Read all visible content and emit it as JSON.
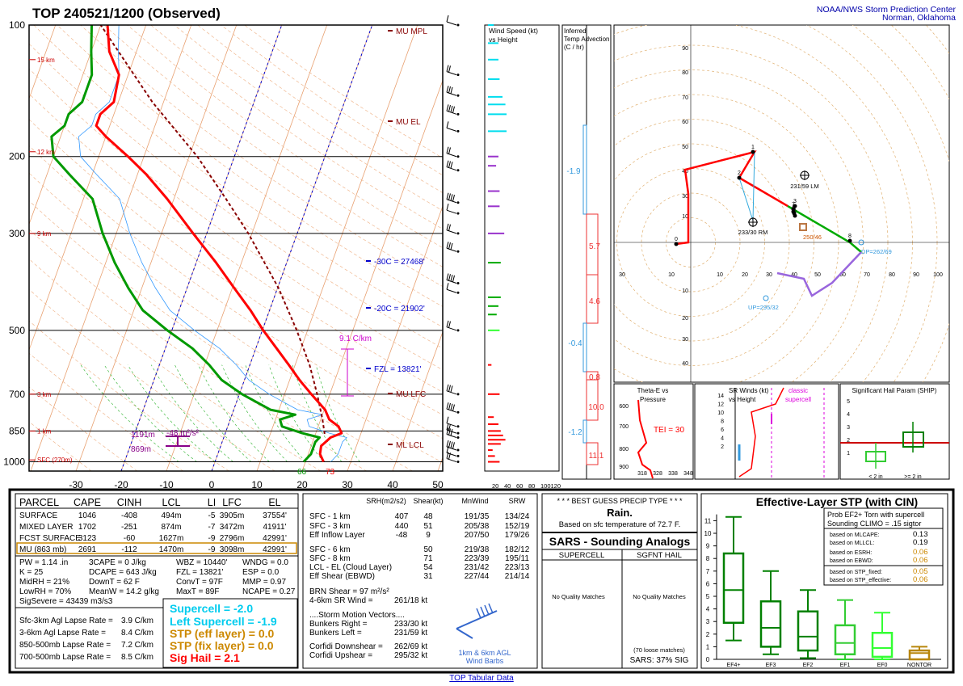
{
  "header": {
    "title": "TOP   240521/1200  (Observed)",
    "org_line1": "NOAA/NWS Storm Prediction Center",
    "org_line2": "Norman, Oklahoma"
  },
  "footer_link": "TOP Tabular Data",
  "chart_data": [
    {
      "type": "line",
      "panel": "skewt",
      "pressure_ticks": [
        "100",
        "200",
        "300",
        "500",
        "700",
        "850",
        "1000"
      ],
      "pressure_values": [
        100,
        200,
        300,
        500,
        700,
        850,
        1000
      ],
      "temp_ticks": [
        "-30",
        "-20",
        "-10",
        "0",
        "10",
        "20",
        "30",
        "40",
        "50"
      ],
      "height_labels": [
        "15 km",
        "12 km",
        "9 km",
        "3 km",
        "1 km",
        "SFC (270m)"
      ],
      "annotations": {
        "mu_mpl": "MU MPL",
        "mu_el": "MU EL",
        "mu_lfc": "MU LFC",
        "ml_lcl": "ML LCL",
        "minus30": "-30C = 27468'",
        "minus20": "-20C = 21902'",
        "fzl": "FZL = 13821'",
        "lapse": "9.1 C/km",
        "eff_top": "1191m",
        "eff_bot": "869m",
        "eff_srh": "-48 m²/s²",
        "sfc_t": "73",
        "sfc_td": "66"
      },
      "temperature": [
        [
          -1000,
          24
        ],
        [
          -960,
          22.6
        ],
        [
          -920,
          22.2
        ],
        [
          -900,
          22.9
        ],
        [
          -880,
          23.6
        ],
        [
          -860,
          25.7
        ],
        [
          -830,
          24.5
        ],
        [
          -800,
          21.9
        ],
        [
          -760,
          20.2
        ],
        [
          -700,
          15.9
        ],
        [
          -650,
          12.2
        ],
        [
          -600,
          8.6
        ],
        [
          -550,
          4.6
        ],
        [
          -500,
          0.2
        ],
        [
          -450,
          -4.2
        ],
        [
          -400,
          -9.6
        ],
        [
          -350,
          -15.6
        ],
        [
          -300,
          -23
        ],
        [
          -250,
          -31.5
        ],
        [
          -220,
          -38
        ],
        [
          -200,
          -43.5
        ],
        [
          -180,
          -50
        ],
        [
          -170,
          -53
        ],
        [
          -160,
          -53
        ],
        [
          -150,
          -51
        ],
        [
          -130,
          -52
        ],
        [
          -115,
          -56
        ],
        [
          -100,
          -58.5
        ]
      ],
      "dewpoint": [
        [
          -1000,
          19.6
        ],
        [
          -960,
          20.6
        ],
        [
          -900,
          20.6
        ],
        [
          -880,
          21.2
        ],
        [
          -860,
          17
        ],
        [
          -830,
          12
        ],
        [
          -800,
          11
        ],
        [
          -780,
          14
        ],
        [
          -760,
          8.1
        ],
        [
          -700,
          0.6
        ],
        [
          -650,
          -5
        ],
        [
          -600,
          -9
        ],
        [
          -550,
          -14
        ],
        [
          -500,
          -21
        ],
        [
          -450,
          -28
        ],
        [
          -400,
          -33
        ],
        [
          -350,
          -38
        ],
        [
          -300,
          -43
        ],
        [
          -250,
          -48
        ],
        [
          -220,
          -55
        ],
        [
          -200,
          -60
        ],
        [
          -180,
          -62
        ],
        [
          -170,
          -60
        ],
        [
          -160,
          -60
        ],
        [
          -150,
          -58
        ],
        [
          -130,
          -58
        ],
        [
          -115,
          -60
        ],
        [
          -100,
          -62
        ]
      ],
      "parcel": [
        [
          -863,
          22
        ],
        [
          -800,
          20.4
        ],
        [
          -700,
          17.2
        ],
        [
          -600,
          13.2
        ],
        [
          -500,
          7.6
        ],
        [
          -400,
          0.2
        ],
        [
          -300,
          -10.8
        ],
        [
          -250,
          -18.5
        ],
        [
          -200,
          -28.2
        ],
        [
          -150,
          -42.5
        ],
        [
          -100,
          -60
        ]
      ]
    },
    {
      "type": "bar",
      "panel": "wind_speed_vs_height",
      "title_line1": "Wind Speed (kt)",
      "title_line2": "vs Height",
      "xticks": [
        "20",
        "40",
        "60",
        "80",
        "100120"
      ],
      "bars": [
        [
          1000,
          20
        ],
        [
          970,
          12
        ],
        [
          940,
          8
        ],
        [
          910,
          22
        ],
        [
          890,
          30
        ],
        [
          870,
          26
        ],
        [
          850,
          22
        ],
        [
          820,
          18
        ],
        [
          790,
          10
        ],
        [
          700,
          20
        ],
        [
          600,
          6
        ],
        [
          500,
          20
        ],
        [
          460,
          15
        ],
        [
          440,
          18
        ],
        [
          420,
          22
        ],
        [
          350,
          22
        ],
        [
          300,
          28
        ],
        [
          260,
          20
        ],
        [
          240,
          20
        ],
        [
          210,
          14
        ],
        [
          200,
          18
        ],
        [
          175,
          32
        ],
        [
          160,
          32
        ],
        [
          152,
          30
        ],
        [
          146,
          25
        ],
        [
          133,
          20
        ],
        [
          120,
          18
        ],
        [
          110,
          18
        ],
        [
          100,
          10
        ]
      ]
    },
    {
      "type": "bar",
      "panel": "temp_advection",
      "title_line1": "Inferred",
      "title_line2": "Temp Advection",
      "title_line3": "(C / hr)",
      "labels": [
        "-1.9",
        "5.7",
        "4.6",
        "-0.4",
        "0.8",
        "10.0",
        "-1.2",
        "11.1"
      ]
    },
    {
      "type": "line",
      "panel": "hodograph",
      "range_labels_x": [
        "30",
        "10",
        "10",
        "30",
        "50",
        "70",
        "90",
        "100",
        "20",
        "40",
        "60",
        "80"
      ],
      "range_labels_y": [
        "90",
        "70",
        "50",
        "30",
        "10",
        "80",
        "60",
        "40",
        "20",
        "10",
        "30",
        "40"
      ],
      "points_labels": [
        "0",
        "1",
        "2",
        "3",
        "4",
        "5",
        "6",
        "7",
        "8"
      ],
      "markers": {
        "lm": "231/59 LM",
        "rm": "233/30 RM",
        "sfc_mean": "250/46",
        "dp": "DP=262/69",
        "up": "UP=295/32"
      }
    },
    {
      "type": "line",
      "panel": "theta_e",
      "title_line1": "Theta-E vs",
      "title_line2": "Pressure",
      "tei": "TEI = 30",
      "yticks": [
        "600",
        "700",
        "800",
        "900"
      ],
      "xticks": [
        "318",
        "328",
        "338",
        "348",
        "358"
      ]
    },
    {
      "type": "line",
      "panel": "sr_winds",
      "title_line1": "SR Winds (kt)",
      "title_line2": "vs Height",
      "note_line1": "classic",
      "note_line2": "supercell",
      "yticks": [
        "14",
        "12",
        "10",
        "8",
        "6",
        "4",
        "2"
      ]
    },
    {
      "type": "bar",
      "panel": "ship",
      "title": "Significant Hail Param (SHIP)",
      "yticks": [
        "5",
        "4",
        "3",
        "2",
        "1"
      ],
      "categories": [
        "< 2 in",
        ">= 2 in"
      ]
    },
    {
      "type": "bar",
      "panel": "effective_stp",
      "title": "Effective-Layer STP (with CIN)",
      "yticks": [
        "11",
        "10",
        "9",
        "8",
        "7",
        "6",
        "5",
        "4",
        "3",
        "2",
        "1",
        "0"
      ],
      "categories": [
        "EF4+",
        "EF3",
        "EF2",
        "EF1",
        "EF0",
        "NONTOR"
      ],
      "boxes": [
        {
          "cat": "EF4+",
          "lo": 1.5,
          "q1": 2.9,
          "med": 5.5,
          "q3": 8.4,
          "hi": 11.3,
          "color": "#008000"
        },
        {
          "cat": "EF3",
          "lo": 0.4,
          "q1": 1.0,
          "med": 2.5,
          "q3": 4.6,
          "hi": 7.0,
          "color": "#008000"
        },
        {
          "cat": "EF2",
          "lo": 0.1,
          "q1": 0.7,
          "med": 1.8,
          "q3": 3.8,
          "hi": 5.5,
          "color": "#008000"
        },
        {
          "cat": "EF1",
          "lo": 0.0,
          "q1": 0.4,
          "med": 1.3,
          "q3": 2.7,
          "hi": 4.7,
          "color": "#33cc33"
        },
        {
          "cat": "EF0",
          "lo": 0.0,
          "q1": 0.2,
          "med": 0.9,
          "q3": 2.1,
          "hi": 3.7,
          "color": "#33ff33"
        },
        {
          "cat": "NONTOR",
          "lo": 0.0,
          "q1": 0.0,
          "med": 0.5,
          "q3": 0.7,
          "hi": 1.0,
          "color": "#b8860b"
        }
      ],
      "prob_title_line1": "Prob EF2+ Torn with supercell",
      "prob_title_line2": "Sounding CLIMO = .15 sigtor",
      "prob_rows": [
        {
          "label": "based on MLCAPE:",
          "value": "0.13"
        },
        {
          "label": "based on MLLCL:",
          "value": "0.19"
        },
        {
          "label": "based on ESRH:",
          "value": "0.06"
        },
        {
          "label": "based on EBWD:",
          "value": "0.06"
        },
        {
          "label": "based on STP_fixed:",
          "value": "0.05"
        },
        {
          "label": "based on STP_effective:",
          "value": "0.06"
        }
      ]
    }
  ],
  "parcel_table": {
    "headers": [
      "PARCEL",
      "CAPE",
      "CINH",
      "LCL",
      "LI",
      "LFC",
      "EL"
    ],
    "rows": [
      [
        "SURFACE",
        "1046",
        "-408",
        "494m",
        "-5",
        "3905m",
        "37554'"
      ],
      [
        "MIXED LAYER",
        "1702",
        "-251",
        "874m",
        "-7",
        "3472m",
        "41911'"
      ],
      [
        "FCST SURFACE",
        "3123",
        "-60",
        "1627m",
        "-9",
        "2796m",
        "42991'"
      ],
      [
        "MU   (863 mb)",
        "2691",
        "-112",
        "1470m",
        "-9",
        "3098m",
        "42991'"
      ]
    ]
  },
  "thermo_params": [
    [
      "PW = 1.14 .in",
      "3CAPE = 0 J/kg",
      "WBZ = 10440'",
      "WNDG = 0.0"
    ],
    [
      "K = 25",
      "DCAPE = 643 J/kg",
      "FZL = 13821'",
      "ESP = 0.0"
    ],
    [
      "MidRH = 21%",
      "DownT = 62 F",
      "ConvT = 97F",
      "MMP = 0.97"
    ],
    [
      "LowRH = 70%",
      "MeanW = 14.2 g/kg",
      "MaxT = 89F",
      "NCAPE = 0.27"
    ]
  ],
  "sig_severe": "SigSevere = 43439 m3/s3",
  "lapse_rates": [
    [
      "Sfc-3km Agl Lapse Rate =",
      "3.9 C/km"
    ],
    [
      "3-6km Agl Lapse Rate =",
      "8.4 C/km"
    ],
    [
      "850-500mb Lapse Rate =",
      "7.2 C/km"
    ],
    [
      "700-500mb Lapse Rate =",
      "8.5 C/km"
    ]
  ],
  "composite": {
    "supercell": "Supercell = -2.0",
    "left_supercell": "Left Supercell = -1.9",
    "stp_eff": "STP (eff layer) = 0.0",
    "stp_fix": "STP (fix layer) = 0.0",
    "sig_hail": "Sig Hail = 2.1"
  },
  "kinematic": {
    "headers": [
      "SRH(m2/s2)",
      "Shear(kt)",
      "MnWind",
      "SRW"
    ],
    "rows": [
      [
        "SFC - 1 km",
        "407",
        "48",
        "191/35",
        "134/24"
      ],
      [
        "SFC - 3 km",
        "440",
        "51",
        "205/38",
        "152/19"
      ],
      [
        "Eff Inflow Layer",
        "-48",
        "9",
        "207/50",
        "179/26"
      ],
      [
        "SFC - 6 km",
        "",
        "50",
        "219/38",
        "182/12"
      ],
      [
        "SFC - 8 km",
        "",
        "71",
        "223/39",
        "195/11"
      ],
      [
        "LCL - EL (Cloud Layer)",
        "",
        "54",
        "231/42",
        "223/13"
      ],
      [
        "Eff Shear (EBWD)",
        "",
        "31",
        "227/44",
        "214/14"
      ]
    ],
    "brn": "BRN Shear =  97 m²/s²",
    "sr46": "4-6km SR Wind =",
    "sr46_val": "261/18 kt",
    "storm_motion": "....Storm Motion Vectors....",
    "bunkers_right": "Bunkers Right =",
    "bunkers_right_val": "233/30 kt",
    "bunkers_left": "Bunkers Left =",
    "bunkers_left_val": "231/59 kt",
    "corfidi_down": "Corfidi Downshear =",
    "corfidi_down_val": "262/69 kt",
    "corfidi_up": "Corfidi Upshear =",
    "corfidi_up_val": "295/32 kt",
    "barb_label1": "1km & 6km AGL",
    "barb_label2": "Wind Barbs"
  },
  "precip": {
    "title": "* * * BEST GUESS PRECIP TYPE * * *",
    "value": "Rain.",
    "note": "Based on sfc temperature of 72.7 F."
  },
  "sars": {
    "title": "SARS - Sounding Analogs",
    "col1": "SUPERCELL",
    "col2": "SGFNT HAIL",
    "nomatch1": "No Quality Matches",
    "nomatch2": "No Quality Matches",
    "loose": "(70 loose matches)",
    "sig": "SARS:  37% SIG"
  },
  "colors": {
    "temp": "#ff0000",
    "dewp": "#009900",
    "parcel": "#880000",
    "cyan": "#00ccee",
    "orange": "#cc8800",
    "purple": "#9933cc",
    "navy": "#000099"
  }
}
